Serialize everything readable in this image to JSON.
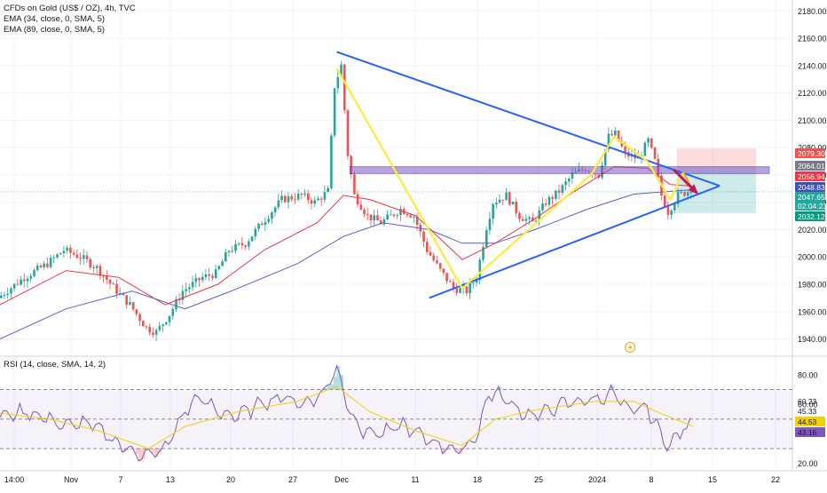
{
  "legend": {
    "symbol": "CFDs on Gold (US$ / OZ), 4h, TVC",
    "ema1": "EMA (34, close, 0, SMA, 5)",
    "ema2": "EMA (89, close, 0, SMA, 5)",
    "rsi": "RSI (14, close, SMA, 14, 2)"
  },
  "colors": {
    "up": "#26a69a",
    "down": "#ef5350",
    "ema34": "#f23645",
    "ema89": "#5b5fc7",
    "trend": "#2962ff",
    "zigzag": "#ffeb3b",
    "zone": "#7e57c2",
    "rsi": "#7e57c2",
    "rsi_ma": "#f5d000"
  },
  "chart_data": {
    "type": "candlestick",
    "title": "CFDs on Gold (US$ / OZ), 4h, TVC",
    "x_ticks": [
      "14:00",
      "Nov",
      "7",
      "13",
      "20",
      "27",
      "Dec",
      "11",
      "18",
      "25",
      "2024",
      "8",
      "15",
      "22"
    ],
    "y_ticks": [
      1940,
      1960,
      1980,
      2000,
      2020,
      2040,
      2060,
      2080,
      2100,
      2120,
      2140,
      2160,
      2180
    ],
    "ylim": [
      1928,
      2188
    ],
    "price_labels": [
      {
        "value": "2079.30",
        "color": "#ef5350"
      },
      {
        "value": "2064.01",
        "color": "#787b86"
      },
      {
        "value": "2056.94",
        "color": "#f23645"
      },
      {
        "value": "2048.83",
        "color": "#3f51b5"
      },
      {
        "value": "2047.65",
        "color": "#26a69a"
      },
      {
        "value": "02:04:23",
        "color": "#26a69a"
      },
      {
        "value": "2032.12",
        "color": "#089981"
      }
    ],
    "price_path": [
      [
        0,
        1970
      ],
      [
        8,
        1985
      ],
      [
        15,
        1995
      ],
      [
        20,
        2005
      ],
      [
        25,
        2000
      ],
      [
        30,
        1992
      ],
      [
        36,
        1975
      ],
      [
        40,
        1965
      ],
      [
        45,
        1948
      ],
      [
        48,
        1945
      ],
      [
        52,
        1958
      ],
      [
        56,
        1975
      ],
      [
        62,
        1985
      ],
      [
        66,
        1988
      ],
      [
        70,
        2005
      ],
      [
        75,
        2010
      ],
      [
        80,
        2025
      ],
      [
        86,
        2042
      ],
      [
        92,
        2045
      ],
      [
        96,
        2040
      ],
      [
        100,
        2048
      ],
      [
        102,
        2125
      ],
      [
        104,
        2140
      ],
      [
        106,
        2075
      ],
      [
        108,
        2045
      ],
      [
        112,
        2030
      ],
      [
        116,
        2025
      ],
      [
        122,
        2035
      ],
      [
        126,
        2030
      ],
      [
        130,
        2005
      ],
      [
        134,
        1990
      ],
      [
        138,
        1977
      ],
      [
        142,
        1975
      ],
      [
        145,
        1985
      ],
      [
        148,
        2022
      ],
      [
        150,
        2040
      ],
      [
        154,
        2045
      ],
      [
        158,
        2030
      ],
      [
        162,
        2025
      ],
      [
        166,
        2040
      ],
      [
        170,
        2048
      ],
      [
        174,
        2060
      ],
      [
        178,
        2065
      ],
      [
        182,
        2060
      ],
      [
        185,
        2088
      ],
      [
        187,
        2090
      ],
      [
        190,
        2075
      ],
      [
        194,
        2072
      ],
      [
        197,
        2085
      ],
      [
        199,
        2070
      ],
      [
        201,
        2045
      ],
      [
        203,
        2033
      ],
      [
        206,
        2045
      ],
      [
        209,
        2048
      ]
    ],
    "ema34_path": [
      [
        0,
        1965
      ],
      [
        20,
        1990
      ],
      [
        36,
        1985
      ],
      [
        50,
        1965
      ],
      [
        66,
        1980
      ],
      [
        80,
        2005
      ],
      [
        96,
        2025
      ],
      [
        104,
        2045
      ],
      [
        112,
        2042
      ],
      [
        126,
        2030
      ],
      [
        140,
        1998
      ],
      [
        150,
        2010
      ],
      [
        162,
        2028
      ],
      [
        174,
        2048
      ],
      [
        186,
        2066
      ],
      [
        196,
        2065
      ],
      [
        203,
        2053
      ],
      [
        209,
        2052
      ]
    ],
    "ema89_path": [
      [
        0,
        1940
      ],
      [
        20,
        1962
      ],
      [
        40,
        1975
      ],
      [
        56,
        1962
      ],
      [
        70,
        1975
      ],
      [
        90,
        1995
      ],
      [
        104,
        2015
      ],
      [
        116,
        2025
      ],
      [
        130,
        2020
      ],
      [
        140,
        2010
      ],
      [
        150,
        2010
      ],
      [
        162,
        2020
      ],
      [
        178,
        2035
      ],
      [
        192,
        2046
      ],
      [
        203,
        2048
      ],
      [
        209,
        2049
      ]
    ],
    "zigzag_path": [
      [
        102,
        2138
      ],
      [
        140,
        1977
      ],
      [
        179,
        2060
      ],
      [
        186,
        2088
      ],
      [
        196,
        2070
      ],
      [
        203,
        2042
      ],
      [
        207,
        2062
      ]
    ],
    "zigzag_tail": [
      [
        207,
        2062
      ],
      [
        210,
        2048
      ]
    ],
    "projection_arrow": [
      [
        204,
        2064
      ],
      [
        211,
        2047
      ]
    ],
    "trendlines": [
      {
        "from": [
          102,
          2150
        ],
        "to": [
          218,
          2052
        ]
      },
      {
        "from": [
          130,
          1970
        ],
        "to": [
          218,
          2052
        ]
      }
    ],
    "supply_zone": {
      "from_x": 106,
      "to_x": 233,
      "y_top": 2066,
      "y_bottom": 2061
    },
    "risk_box": {
      "from_x": 205,
      "to_x": 229,
      "top": 2079.3,
      "entry": 2064.01
    },
    "reward_box": {
      "from_x": 205,
      "to_x": 229,
      "entry": 2064.01,
      "bottom": 2032.12
    },
    "rsi": {
      "y_ticks": [
        20,
        40,
        60,
        80
      ],
      "ylim": [
        15,
        92
      ],
      "upper": 70,
      "middle": 50,
      "lower": 30,
      "labels": [
        {
          "value": "60.23",
          "color": "#787b86"
        },
        {
          "value": "45.33",
          "color": "#787b86"
        },
        {
          "value": "44.53",
          "color": "#f5d000"
        },
        {
          "value": "43.16",
          "color": "#7e57c2"
        }
      ],
      "values": [
        [
          0,
          52
        ],
        [
          8,
          55
        ],
        [
          15,
          50
        ],
        [
          20,
          45
        ],
        [
          26,
          48
        ],
        [
          32,
          40
        ],
        [
          38,
          30
        ],
        [
          45,
          25
        ],
        [
          50,
          30
        ],
        [
          56,
          55
        ],
        [
          60,
          65
        ],
        [
          66,
          55
        ],
        [
          72,
          52
        ],
        [
          80,
          62
        ],
        [
          86,
          65
        ],
        [
          92,
          60
        ],
        [
          98,
          68
        ],
        [
          102,
          85
        ],
        [
          106,
          55
        ],
        [
          110,
          42
        ],
        [
          116,
          40
        ],
        [
          122,
          46
        ],
        [
          128,
          38
        ],
        [
          134,
          32
        ],
        [
          140,
          28
        ],
        [
          145,
          42
        ],
        [
          148,
          68
        ],
        [
          152,
          65
        ],
        [
          158,
          55
        ],
        [
          162,
          52
        ],
        [
          168,
          58
        ],
        [
          174,
          62
        ],
        [
          180,
          63
        ],
        [
          186,
          68
        ],
        [
          190,
          55
        ],
        [
          196,
          58
        ],
        [
          200,
          40
        ],
        [
          203,
          32
        ],
        [
          207,
          44
        ],
        [
          210,
          45
        ]
      ],
      "ma": [
        [
          0,
          54
        ],
        [
          15,
          50
        ],
        [
          30,
          42
        ],
        [
          45,
          30
        ],
        [
          56,
          45
        ],
        [
          72,
          55
        ],
        [
          90,
          62
        ],
        [
          102,
          72
        ],
        [
          112,
          55
        ],
        [
          126,
          42
        ],
        [
          140,
          32
        ],
        [
          150,
          50
        ],
        [
          162,
          56
        ],
        [
          180,
          62
        ],
        [
          192,
          62
        ],
        [
          200,
          54
        ],
        [
          210,
          45
        ]
      ]
    }
  }
}
